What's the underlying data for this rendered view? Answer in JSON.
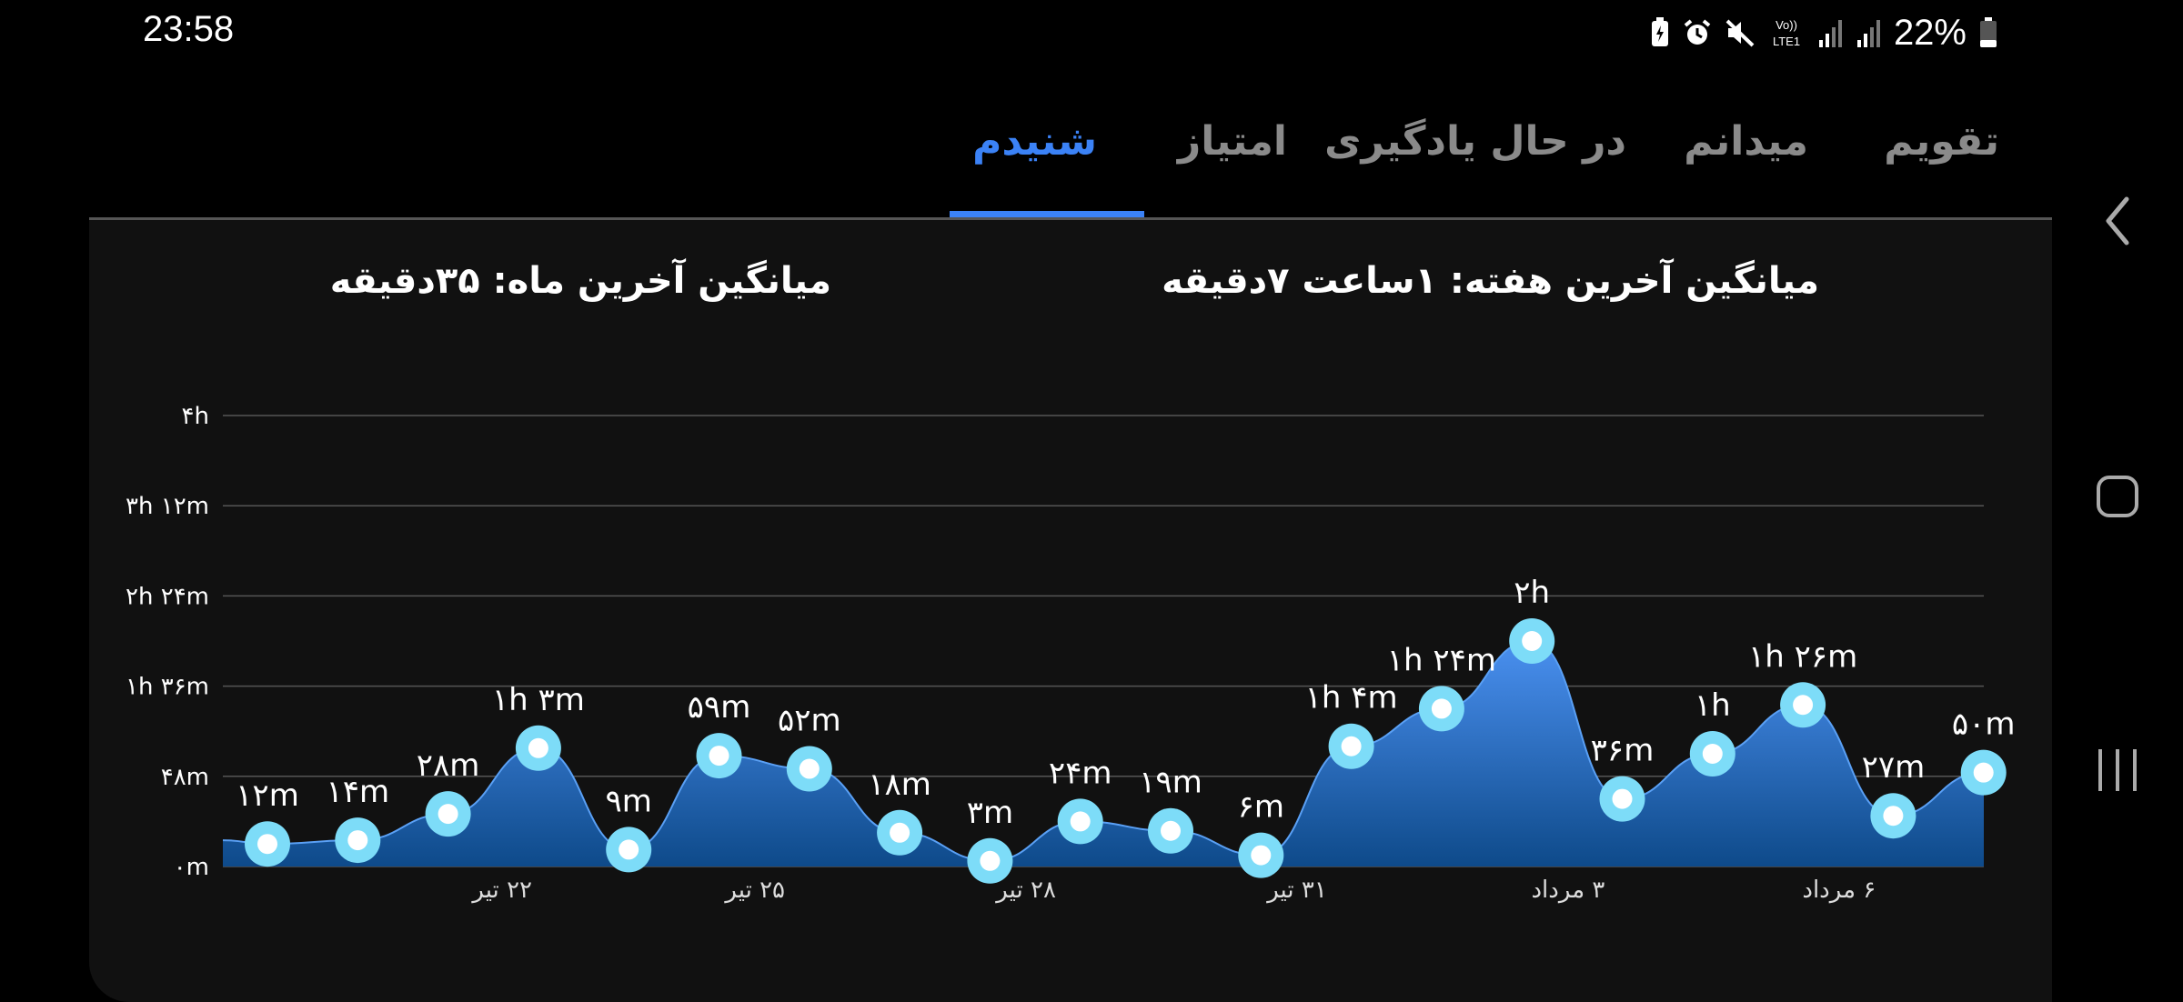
{
  "status": {
    "time": "23:58",
    "battery": "22%",
    "network_label_top": "Vo))",
    "network_label_bottom": "LTE1",
    "icons": [
      "battery-saver-icon",
      "alarm-icon",
      "mute-icon",
      "volte-icon",
      "signal-icon",
      "signal-icon",
      "battery-icon"
    ]
  },
  "tabs": [
    {
      "label": "تقویم",
      "active": false
    },
    {
      "label": "میدانم",
      "active": false
    },
    {
      "label": "در حال یادگیری",
      "active": false
    },
    {
      "label": "امتیاز",
      "active": false
    },
    {
      "label": "شنیدم",
      "active": true
    }
  ],
  "summary": {
    "week": "میانگین آخرین هفته: ۱ساعت  ۷دقیقه",
    "month": "میانگین آخرین ماه: ۳۵دقیقه"
  },
  "colors": {
    "accent": "#3b82f6",
    "point": "#ffffff",
    "point_ring": "#7ddcf8",
    "area_top": "#4a90f0",
    "area_bottom": "#0e4a8a"
  },
  "nav": [
    "back-icon",
    "home-icon",
    "recents-icon"
  ],
  "chart_data": {
    "type": "area",
    "y_unit": "minutes",
    "ylim": [
      0,
      240
    ],
    "yticks": [
      {
        "value": 0,
        "label": "۰m"
      },
      {
        "value": 48,
        "label": "۴۸m"
      },
      {
        "value": 96,
        "label": "۱h ۳۶m"
      },
      {
        "value": 144,
        "label": "۲h ۲۴m"
      },
      {
        "value": 192,
        "label": "۳h ۱۲m"
      },
      {
        "value": 240,
        "label": "۴h"
      }
    ],
    "xticks": [
      {
        "index": 2.6,
        "label": "۲۲ تیر"
      },
      {
        "index": 5.4,
        "label": "۲۵ تیر"
      },
      {
        "index": 8.4,
        "label": "۲۸ تیر"
      },
      {
        "index": 11.4,
        "label": "۳۱ تیر"
      },
      {
        "index": 14.4,
        "label": "۳ مرداد"
      },
      {
        "index": 17.4,
        "label": "۶ مرداد"
      }
    ],
    "lead_value": 14,
    "points": [
      {
        "value": 12,
        "label": "۱۲m"
      },
      {
        "value": 14,
        "label": "۱۴m"
      },
      {
        "value": 28,
        "label": "۲۸m"
      },
      {
        "value": 63,
        "label": "۱h ۳m"
      },
      {
        "value": 9,
        "label": "۹m"
      },
      {
        "value": 59,
        "label": "۵۹m"
      },
      {
        "value": 52,
        "label": "۵۲m"
      },
      {
        "value": 18,
        "label": "۱۸m"
      },
      {
        "value": 3,
        "label": "۳m"
      },
      {
        "value": 24,
        "label": "۲۴m"
      },
      {
        "value": 19,
        "label": "۱۹m"
      },
      {
        "value": 6,
        "label": "۶m"
      },
      {
        "value": 64,
        "label": "۱h ۴m"
      },
      {
        "value": 84,
        "label": "۱h ۲۴m"
      },
      {
        "value": 120,
        "label": "۲h"
      },
      {
        "value": 36,
        "label": "۳۶m"
      },
      {
        "value": 60,
        "label": "۱h"
      },
      {
        "value": 86,
        "label": "۱h ۲۶m"
      },
      {
        "value": 27,
        "label": "۲۷m"
      },
      {
        "value": 50,
        "label": "۵۰m"
      }
    ]
  }
}
